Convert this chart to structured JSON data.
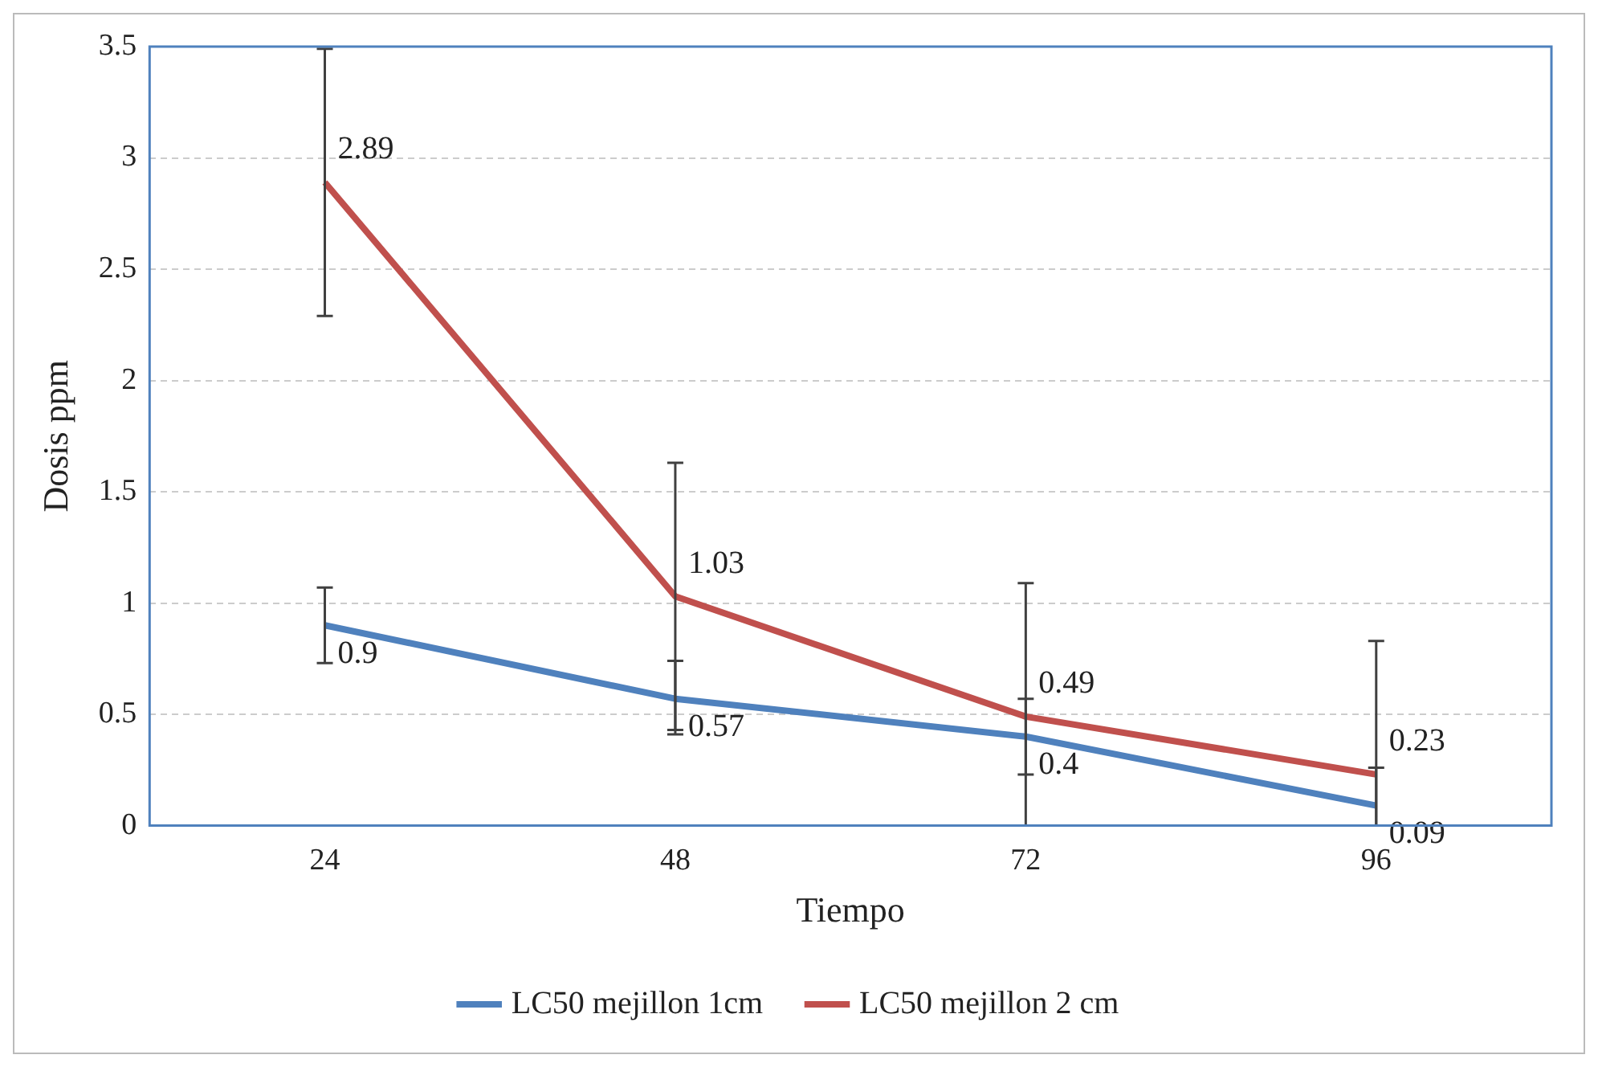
{
  "chart_data": {
    "type": "line",
    "xlabel": "Tiempo",
    "ylabel": "Dosis ppm",
    "categories": [
      "24",
      "48",
      "72",
      "96"
    ],
    "series": [
      {
        "name": "LC50 mejillon 1cm",
        "color": "#4f81bd",
        "values": [
          0.9,
          0.57,
          0.4,
          0.09
        ],
        "errors": [
          [
            0.73,
            1.07
          ],
          [
            0.41,
            0.74
          ],
          [
            0.23,
            0.57
          ],
          [
            0,
            0.26
          ]
        ]
      },
      {
        "name": "LC50 mejillon 2 cm",
        "color": "#c0504d",
        "values": [
          2.89,
          1.03,
          0.49,
          0.23
        ],
        "errors": [
          [
            2.29,
            3.49
          ],
          [
            0.43,
            1.63
          ],
          [
            0,
            1.09
          ],
          [
            0,
            0.83
          ]
        ]
      }
    ],
    "ylim": [
      0,
      3.5
    ],
    "yticks": [
      0,
      0.5,
      1,
      1.5,
      2,
      2.5,
      3,
      3.5
    ],
    "grid": "y",
    "legend": "bottom",
    "marker": "none",
    "line_style": "solid",
    "data_labels": true
  }
}
